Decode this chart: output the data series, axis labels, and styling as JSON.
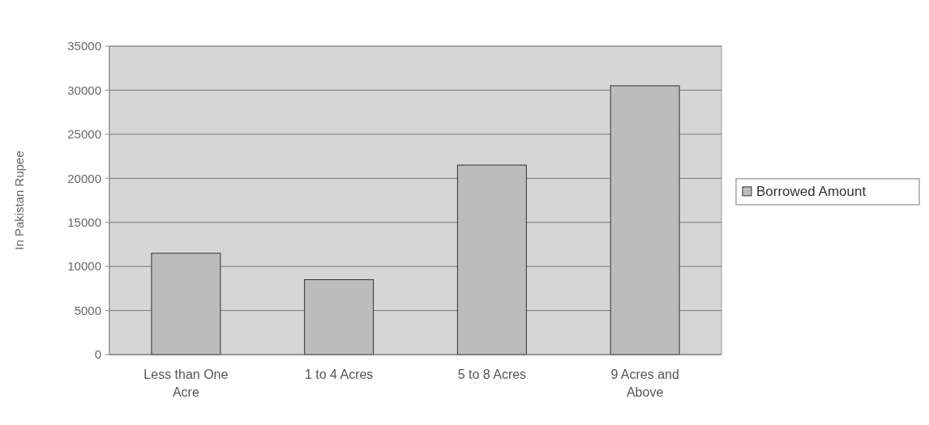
{
  "chart_data": {
    "type": "bar",
    "ylabel": "In Pakistan Rupee",
    "categories": [
      "Less than One Acre",
      "1 to 4 Acres",
      "5 to 8 Acres",
      "9 Acres and Above"
    ],
    "series": [
      {
        "name": "Borrowed Amount",
        "color": "#bcbcbc",
        "values": [
          11500,
          8500,
          21500,
          30500
        ]
      }
    ],
    "ylim": [
      0,
      35000
    ],
    "yticks": [
      0,
      5000,
      10000,
      15000,
      20000,
      25000,
      30000,
      35000
    ],
    "grid": "y",
    "legend": "right"
  }
}
